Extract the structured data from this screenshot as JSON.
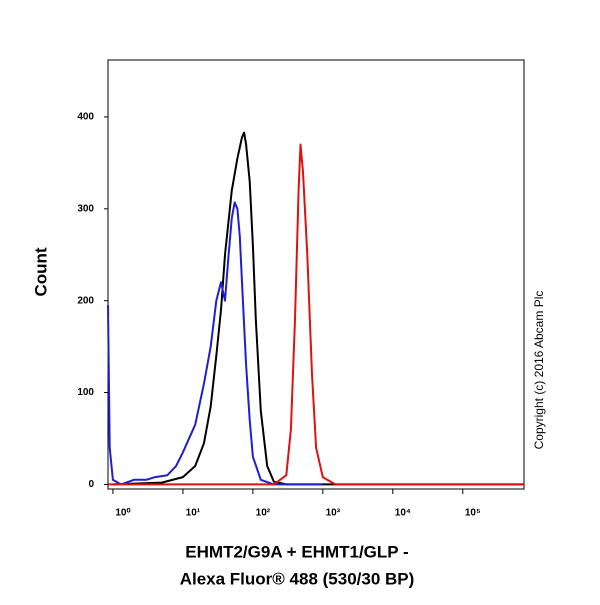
{
  "chart_data": {
    "type": "line",
    "ylabel": "Count",
    "xlabel": [
      "EHMT2/G9A + EHMT1/GLP -",
      "Alexa Fluor® 488 (530/30 BP)"
    ],
    "annotation": "Copyright (c) 2016 Abcam Plc",
    "xscale": "log",
    "xlim": [
      0.85,
      750000
    ],
    "xticks": [
      {
        "value": 1,
        "label": "10⁰"
      },
      {
        "value": 10,
        "label": "10¹"
      },
      {
        "value": 100,
        "label": "10²"
      },
      {
        "value": 1000,
        "label": "10³"
      },
      {
        "value": 10000,
        "label": "10⁴"
      },
      {
        "value": 100000,
        "label": "10⁵"
      }
    ],
    "ylim": [
      -5,
      462
    ],
    "yticks": [
      0,
      100,
      200,
      300,
      400
    ],
    "series": [
      {
        "color": "#000000",
        "x": [
          1,
          5,
          10,
          15,
          20,
          25,
          30,
          35,
          40,
          50,
          60,
          70,
          75,
          80,
          90,
          100,
          110,
          130,
          160,
          200,
          300,
          750000
        ],
        "values": [
          0,
          2,
          8,
          20,
          45,
          85,
          140,
          190,
          250,
          320,
          355,
          378,
          383,
          370,
          330,
          260,
          180,
          80,
          20,
          3,
          0,
          0
        ]
      },
      {
        "color": "#1f1fd0",
        "x": [
          0.85,
          0.9,
          1,
          1.3,
          2,
          3,
          4,
          6,
          8,
          10,
          15,
          20,
          25,
          30,
          35,
          40,
          45,
          50,
          55,
          60,
          65,
          70,
          80,
          90,
          100,
          130,
          200,
          1000
        ],
        "values": [
          195,
          40,
          5,
          0,
          5,
          5,
          8,
          10,
          20,
          35,
          65,
          110,
          150,
          200,
          220,
          200,
          250,
          290,
          307,
          300,
          270,
          220,
          130,
          70,
          30,
          5,
          0,
          0
        ]
      },
      {
        "color": "#e01010",
        "x": [
          0.85,
          200,
          300,
          350,
          400,
          450,
          480,
          520,
          600,
          700,
          800,
          1000,
          1500,
          750000
        ],
        "values": [
          0,
          0,
          10,
          60,
          180,
          320,
          370,
          340,
          250,
          120,
          40,
          8,
          0,
          0
        ]
      }
    ]
  }
}
